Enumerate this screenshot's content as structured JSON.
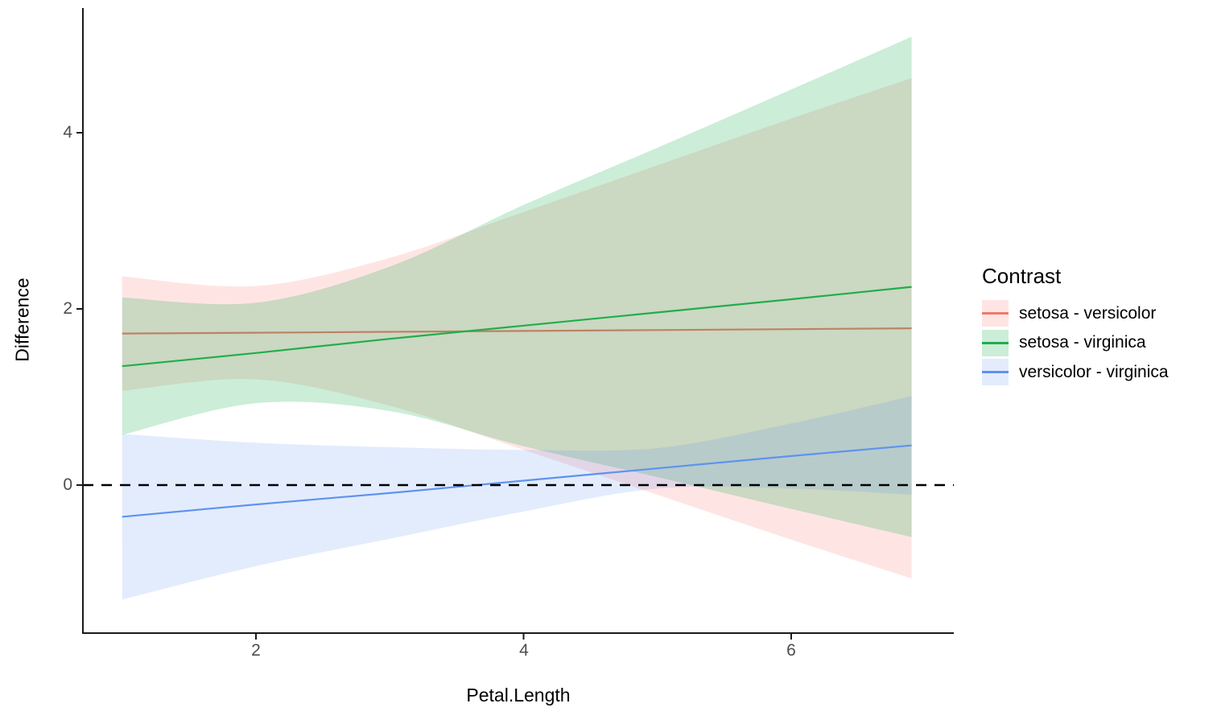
{
  "figure": {
    "background": "#FFFFFF"
  },
  "axes": {
    "x": {
      "label": "Petal.Length",
      "ticks": [
        "2",
        "4",
        "6"
      ],
      "tick_values": [
        2,
        4,
        6
      ],
      "range": [
        0.7,
        7.2
      ]
    },
    "y": {
      "label": "Difference",
      "ticks": [
        "0",
        "2",
        "4"
      ],
      "tick_values": [
        0,
        2,
        4
      ],
      "range": [
        -1.68,
        5.4
      ]
    },
    "axis_line_color": "#1A1A1A",
    "tick_text_color": "#4D4D4D"
  },
  "reference_line": {
    "y": 0,
    "style": "dashed",
    "color": "#000000"
  },
  "legend": {
    "title": "Contrast",
    "items": [
      {
        "label": "setosa - versicolor"
      },
      {
        "label": "setosa - virginica"
      },
      {
        "label": "versicolor - virginica"
      }
    ]
  },
  "chart_data": {
    "type": "line",
    "title": "",
    "xlabel": "Petal.Length",
    "ylabel": "Difference",
    "x": [
      1,
      2,
      3,
      4,
      5,
      6,
      6.9
    ],
    "xlim": [
      0.7,
      7.2
    ],
    "ylim": [
      -1.68,
      5.4
    ],
    "grid": false,
    "legend_position": "right",
    "series": [
      {
        "name": "setosa - versicolor",
        "line_color": "#ED7A70",
        "fill_color": "#F8766D",
        "fill_opacity": 0.19,
        "values": [
          1.72,
          1.73,
          1.74,
          1.75,
          1.76,
          1.77,
          1.78
        ],
        "ci_upper": [
          2.37,
          2.26,
          2.58,
          3.1,
          3.63,
          4.16,
          4.62
        ],
        "ci_lower": [
          1.07,
          1.2,
          0.9,
          0.4,
          -0.11,
          -0.62,
          -1.06
        ]
      },
      {
        "name": "setosa - virginica",
        "line_color": "#1FAE4B",
        "fill_color": "#00A53C",
        "fill_opacity": 0.2,
        "values": [
          1.35,
          1.5,
          1.66,
          1.81,
          1.96,
          2.11,
          2.25
        ],
        "ci_upper": [
          2.13,
          2.07,
          2.48,
          3.18,
          3.83,
          4.49,
          5.09
        ],
        "ci_lower": [
          0.57,
          0.93,
          0.84,
          0.44,
          0.09,
          -0.27,
          -0.59
        ]
      },
      {
        "name": "versicolor - virginica",
        "line_color": "#5E93EF",
        "fill_color": "#5B8FF5",
        "fill_opacity": 0.17,
        "values": [
          -0.36,
          -0.22,
          -0.09,
          0.05,
          0.19,
          0.33,
          0.45
        ],
        "ci_upper": [
          0.58,
          0.48,
          0.43,
          0.4,
          0.42,
          0.7,
          1.01
        ],
        "ci_lower": [
          -1.3,
          -0.92,
          -0.61,
          -0.3,
          -0.04,
          -0.04,
          -0.11
        ]
      }
    ]
  }
}
